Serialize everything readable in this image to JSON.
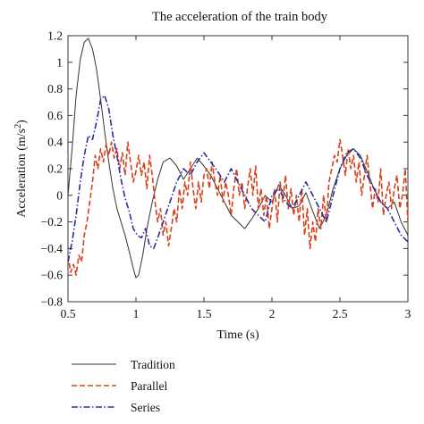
{
  "chart_data": {
    "type": "line",
    "title": "The acceleration of the train body",
    "xlabel": "Time (s)",
    "ylabel_prefix": "Acceleration (m/s",
    "ylabel_sup": "2",
    "ylabel_suffix": ")",
    "xlim": [
      0.5,
      3
    ],
    "ylim": [
      -0.8,
      1.2
    ],
    "xticks": [
      0.5,
      1,
      1.5,
      2,
      2.5,
      3
    ],
    "xtick_labels": [
      "0.5",
      "1",
      "1.5",
      "2",
      "2.5",
      "3"
    ],
    "yticks": [
      -0.8,
      -0.6,
      -0.4,
      -0.2,
      0,
      0.2,
      0.4,
      0.6,
      0.8,
      1,
      1.2
    ],
    "ytick_labels": [
      "−0.8",
      "−0.6",
      "−0.4",
      "−0.2",
      "0",
      "0.2",
      "0.4",
      "0.6",
      "0.8",
      "1",
      "1.2"
    ],
    "grid": false,
    "legend_position": "below",
    "series": [
      {
        "name": "Tradition",
        "color": "#333333",
        "style": "solid",
        "x": [
          0.5,
          0.53,
          0.56,
          0.59,
          0.62,
          0.65,
          0.68,
          0.71,
          0.74,
          0.77,
          0.8,
          0.83,
          0.86,
          0.89,
          0.92,
          0.95,
          0.98,
          1.0,
          1.02,
          1.05,
          1.08,
          1.12,
          1.16,
          1.2,
          1.25,
          1.3,
          1.35,
          1.4,
          1.45,
          1.5,
          1.55,
          1.6,
          1.65,
          1.7,
          1.75,
          1.8,
          1.85,
          1.9,
          1.95,
          2.0,
          2.05,
          2.1,
          2.15,
          2.2,
          2.25,
          2.3,
          2.35,
          2.4,
          2.45,
          2.5,
          2.55,
          2.6,
          2.65,
          2.7,
          2.75,
          2.8,
          2.85,
          2.9,
          2.95,
          3.0
        ],
        "y": [
          0.0,
          0.35,
          0.75,
          1.02,
          1.15,
          1.18,
          1.1,
          0.95,
          0.72,
          0.48,
          0.25,
          0.05,
          -0.1,
          -0.2,
          -0.3,
          -0.42,
          -0.55,
          -0.62,
          -0.6,
          -0.45,
          -0.25,
          -0.05,
          0.12,
          0.25,
          0.28,
          0.22,
          0.12,
          0.2,
          0.28,
          0.22,
          0.15,
          0.05,
          -0.05,
          -0.15,
          -0.2,
          -0.25,
          -0.18,
          -0.1,
          0.0,
          -0.05,
          0.08,
          0.0,
          -0.1,
          -0.08,
          0.02,
          -0.12,
          -0.25,
          -0.15,
          0.05,
          0.2,
          0.3,
          0.35,
          0.3,
          0.18,
          0.05,
          -0.05,
          -0.1,
          -0.05,
          -0.2,
          -0.3
        ]
      },
      {
        "name": "Parallel",
        "color": "#d8401a",
        "style": "dashed",
        "x": [
          0.5,
          0.52,
          0.54,
          0.56,
          0.58,
          0.6,
          0.62,
          0.64,
          0.66,
          0.68,
          0.7,
          0.72,
          0.74,
          0.76,
          0.78,
          0.8,
          0.82,
          0.84,
          0.86,
          0.88,
          0.9,
          0.92,
          0.94,
          0.96,
          0.98,
          1.0,
          1.02,
          1.04,
          1.06,
          1.08,
          1.1,
          1.12,
          1.14,
          1.16,
          1.18,
          1.2,
          1.22,
          1.24,
          1.26,
          1.28,
          1.3,
          1.32,
          1.34,
          1.36,
          1.38,
          1.4,
          1.42,
          1.44,
          1.46,
          1.48,
          1.5,
          1.52,
          1.54,
          1.56,
          1.58,
          1.6,
          1.62,
          1.64,
          1.66,
          1.68,
          1.7,
          1.72,
          1.74,
          1.76,
          1.78,
          1.8,
          1.82,
          1.84,
          1.86,
          1.88,
          1.9,
          1.92,
          1.94,
          1.96,
          1.98,
          2.0,
          2.02,
          2.04,
          2.06,
          2.08,
          2.1,
          2.12,
          2.14,
          2.16,
          2.18,
          2.2,
          2.22,
          2.24,
          2.26,
          2.28,
          2.3,
          2.32,
          2.34,
          2.36,
          2.38,
          2.4,
          2.42,
          2.44,
          2.46,
          2.48,
          2.5,
          2.52,
          2.54,
          2.56,
          2.58,
          2.6,
          2.62,
          2.64,
          2.66,
          2.68,
          2.7,
          2.72,
          2.74,
          2.76,
          2.78,
          2.8,
          2.82,
          2.84,
          2.86,
          2.88,
          2.9,
          2.92,
          2.94,
          2.96,
          2.98,
          3.0
        ],
        "y": [
          -0.45,
          -0.58,
          -0.52,
          -0.6,
          -0.45,
          -0.5,
          -0.3,
          -0.2,
          -0.05,
          0.1,
          0.3,
          0.2,
          0.35,
          0.25,
          0.38,
          0.3,
          0.4,
          0.28,
          0.35,
          0.2,
          0.32,
          0.15,
          0.4,
          0.25,
          0.1,
          0.18,
          0.3,
          0.15,
          0.25,
          0.05,
          0.3,
          0.15,
          -0.05,
          -0.2,
          -0.1,
          -0.3,
          -0.2,
          -0.38,
          -0.25,
          -0.1,
          -0.2,
          0.05,
          -0.1,
          0.1,
          0.0,
          0.25,
          0.05,
          -0.1,
          0.1,
          -0.05,
          0.15,
          0.2,
          0.05,
          0.25,
          0.1,
          0.0,
          0.15,
          -0.05,
          0.1,
          0.0,
          -0.15,
          0.05,
          0.2,
          0.0,
          0.1,
          -0.1,
          0.05,
          0.2,
          0.0,
          0.22,
          -0.1,
          0.05,
          -0.15,
          0.0,
          -0.25,
          -0.1,
          0.05,
          -0.2,
          0.1,
          -0.05,
          0.15,
          -0.1,
          0.05,
          -0.15,
          0.0,
          -0.2,
          0.05,
          -0.3,
          -0.1,
          -0.4,
          -0.2,
          -0.35,
          -0.1,
          -0.25,
          0.0,
          -0.2,
          0.1,
          0.2,
          0.3,
          0.25,
          0.42,
          0.3,
          0.15,
          0.35,
          0.2,
          0.3,
          0.1,
          0.25,
          0.0,
          0.15,
          0.3,
          0.1,
          -0.1,
          0.05,
          -0.05,
          0.2,
          -0.15,
          0.0,
          0.1,
          -0.1,
          0.05,
          0.15,
          -0.1,
          0.0,
          0.2,
          -0.2
        ]
      },
      {
        "name": "Series",
        "color": "#2a2e9e",
        "style": "dashdot",
        "x": [
          0.5,
          0.53,
          0.56,
          0.59,
          0.62,
          0.65,
          0.68,
          0.71,
          0.74,
          0.77,
          0.8,
          0.83,
          0.86,
          0.89,
          0.92,
          0.95,
          0.98,
          1.01,
          1.04,
          1.07,
          1.1,
          1.13,
          1.16,
          1.2,
          1.25,
          1.3,
          1.35,
          1.4,
          1.45,
          1.5,
          1.55,
          1.6,
          1.65,
          1.7,
          1.75,
          1.8,
          1.85,
          1.9,
          1.95,
          2.0,
          2.05,
          2.1,
          2.15,
          2.2,
          2.25,
          2.3,
          2.35,
          2.4,
          2.45,
          2.5,
          2.55,
          2.6,
          2.65,
          2.7,
          2.75,
          2.8,
          2.85,
          2.9,
          2.95,
          3.0
        ],
        "y": [
          -0.5,
          -0.35,
          -0.15,
          0.1,
          0.3,
          0.45,
          0.42,
          0.55,
          0.72,
          0.75,
          0.65,
          0.45,
          0.3,
          0.12,
          -0.02,
          -0.12,
          -0.25,
          -0.3,
          -0.32,
          -0.25,
          -0.38,
          -0.4,
          -0.32,
          -0.2,
          -0.05,
          0.1,
          0.2,
          0.15,
          0.25,
          0.32,
          0.25,
          0.18,
          0.1,
          0.2,
          0.1,
          0.0,
          -0.1,
          -0.15,
          -0.2,
          0.0,
          0.05,
          -0.05,
          -0.1,
          0.0,
          0.1,
          0.0,
          -0.1,
          -0.2,
          0.0,
          0.2,
          0.32,
          0.35,
          0.28,
          0.15,
          0.05,
          -0.05,
          -0.1,
          -0.2,
          -0.3,
          -0.35
        ]
      }
    ]
  }
}
